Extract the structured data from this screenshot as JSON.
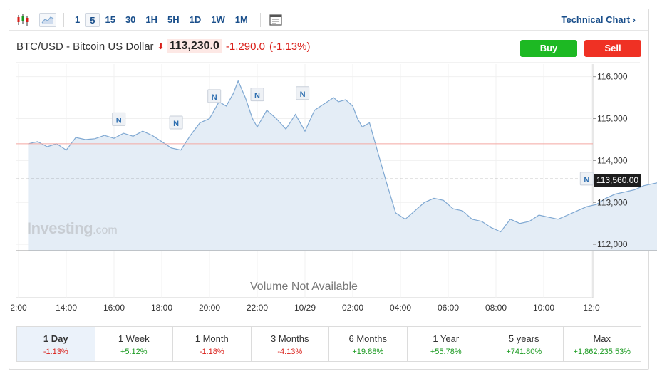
{
  "toolbar": {
    "intervals": [
      "1",
      "5",
      "15",
      "30",
      "1H",
      "5H",
      "1D",
      "1W",
      "1M"
    ],
    "active_interval": "5",
    "technical_link": "Technical Chart ›"
  },
  "header": {
    "symbol": "BTC/USD - Bitcoin US Dollar",
    "direction_icon": "arrow-down-icon",
    "price": "113,230.0",
    "change": "-1,290.0",
    "change_pct": "(-1.13%)",
    "buy_label": "Buy",
    "sell_label": "Sell"
  },
  "colors": {
    "accent": "#1a4f8b",
    "up": "#1a9a20",
    "down": "#d91e18",
    "line": "#7fa8d2",
    "area": "#e4edf6",
    "prev_close_line": "#f4a8a2",
    "buy": "#1db923",
    "sell": "#ef3124"
  },
  "watermark": {
    "brand": "Investing",
    "suffix": ".com"
  },
  "volume_text": "Volume Not Available",
  "last_price_label": "113,560.00",
  "chart_data": {
    "type": "area",
    "x_ticks": [
      "2:00",
      "14:00",
      "16:00",
      "18:00",
      "20:00",
      "22:00",
      "10/29",
      "02:00",
      "04:00",
      "06:00",
      "08:00",
      "10:00",
      "12:0"
    ],
    "y_ticks": [
      "116,000",
      "115,000",
      "114,000",
      "113,000",
      "112,000"
    ],
    "ylim": [
      111850,
      116300
    ],
    "prev_close": 114400,
    "last_price": 113560,
    "grid": true,
    "series": [
      {
        "x": [
          -0.8,
          -0.6,
          -0.4,
          -0.2,
          0,
          0.2,
          0.4,
          0.6,
          0.8,
          1.0,
          1.2,
          1.4,
          1.6,
          1.8,
          2.0,
          2.2,
          2.4,
          2.6,
          2.8,
          3.0,
          3.2,
          3.35,
          3.5,
          3.6,
          3.75,
          3.9,
          4.0,
          4.2,
          4.4,
          4.6,
          4.8,
          5.0,
          5.2,
          5.4,
          5.6,
          5.7,
          5.85,
          6.0,
          6.1,
          6.2,
          6.35,
          6.5,
          6.7,
          6.9,
          7.1,
          7.3,
          7.5,
          7.7,
          7.9,
          8.1,
          8.3,
          8.5,
          8.7,
          8.9,
          9.1,
          9.3,
          9.5,
          9.7,
          9.9,
          10.1,
          10.3,
          10.5,
          10.7,
          10.9,
          11.1,
          11.3,
          11.5,
          11.7,
          11.9,
          12.1,
          12.3,
          12.5,
          12.7,
          12.95
        ],
        "values": [
          114400,
          114450,
          114330,
          114400,
          114250,
          114550,
          114500,
          114520,
          114600,
          114530,
          114650,
          114580,
          114700,
          114600,
          114450,
          114300,
          114250,
          114600,
          114900,
          115000,
          115400,
          115300,
          115600,
          115900,
          115500,
          115000,
          114800,
          115200,
          115000,
          114750,
          115100,
          114700,
          115200,
          115350,
          115500,
          115400,
          115450,
          115300,
          115000,
          114800,
          114900,
          114300,
          113500,
          112750,
          112600,
          112800,
          113000,
          113100,
          113050,
          112850,
          112800,
          112600,
          112550,
          112400,
          112300,
          112600,
          112500,
          112550,
          112700,
          112650,
          112600,
          112700,
          112800,
          112900,
          112950,
          113100,
          113200,
          113250,
          113300,
          113400,
          113450,
          113500,
          113600,
          113560
        ]
      }
    ],
    "markers": [
      {
        "label": "N",
        "x": 1.1,
        "y": 114800
      },
      {
        "label": "N",
        "x": 2.3,
        "y": 114720
      },
      {
        "label": "N",
        "x": 3.1,
        "y": 115350
      },
      {
        "label": "N",
        "x": 4.0,
        "y": 115390
      },
      {
        "label": "N",
        "x": 4.95,
        "y": 115420
      },
      {
        "label": "N",
        "x": 10.9,
        "y": 113380
      }
    ]
  },
  "periods": [
    {
      "label": "1 Day",
      "value": "-1.13%",
      "dir": "neg",
      "active": true
    },
    {
      "label": "1 Week",
      "value": "+5.12%",
      "dir": "pos",
      "active": false
    },
    {
      "label": "1 Month",
      "value": "-1.18%",
      "dir": "neg",
      "active": false
    },
    {
      "label": "3 Months",
      "value": "-4.13%",
      "dir": "neg",
      "active": false
    },
    {
      "label": "6 Months",
      "value": "+19.88%",
      "dir": "pos",
      "active": false
    },
    {
      "label": "1 Year",
      "value": "+55.78%",
      "dir": "pos",
      "active": false
    },
    {
      "label": "5 years",
      "value": "+741.80%",
      "dir": "pos",
      "active": false
    },
    {
      "label": "Max",
      "value": "+1,862,235.53%",
      "dir": "pos",
      "active": false
    }
  ]
}
